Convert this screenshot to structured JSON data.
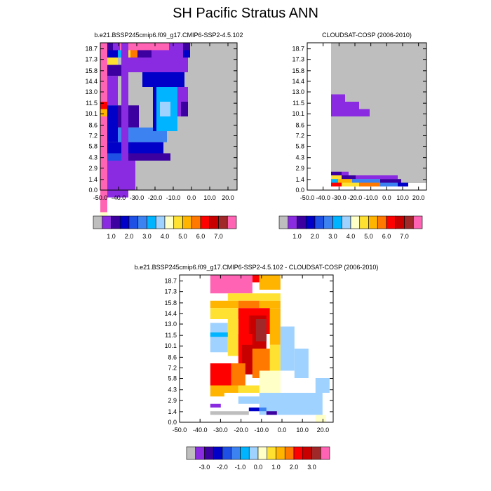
{
  "title": "SH Pacific Stratus ANN",
  "chart_data": [
    {
      "type": "heatmap",
      "title": "b.e21.BSSP245cmip6.f09_g17.CMIP6-SSP2-4.5.102",
      "x_ticks": [
        "-50.0",
        "-40.0",
        "-30.0",
        "-20.0",
        "-10.0",
        "0.0",
        "10.0",
        "20.0"
      ],
      "x_range": [
        -50,
        25
      ],
      "y_ticks": [
        "0.0",
        "1.4",
        "2.9",
        "4.3",
        "5.8",
        "7.2",
        "8.6",
        "10.1",
        "11.5",
        "13.0",
        "14.4",
        "15.8",
        "17.3",
        "18.7"
      ],
      "y_range": [
        0,
        19.5
      ],
      "legend_labels": [
        "1.0",
        "2.0",
        "3.0",
        "4.0",
        "5.0",
        "6.0",
        "7.0"
      ],
      "legend_colors": [
        "#bebebe",
        "#8a2be2",
        "#3c00a0",
        "#0000c8",
        "#1e50e6",
        "#3c82f0",
        "#00b4ff",
        "#a0d2ff",
        "#ffffc8",
        "#ffe132",
        "#ffb400",
        "#ff7800",
        "#ff0000",
        "#c80000",
        "#a02828",
        "#ff64b4"
      ],
      "missing_color": "#bebebe"
    },
    {
      "type": "heatmap",
      "title": "CLOUDSAT-COSP (2006-2010)",
      "x_ticks": [
        "-50.0",
        "-40.0",
        "-30.0",
        "-20.0",
        "-10.0",
        "0.0",
        "10.0",
        "20.0"
      ],
      "x_range": [
        -50,
        25
      ],
      "y_ticks": [
        "0.0",
        "1.4",
        "2.9",
        "4.3",
        "5.8",
        "7.2",
        "8.6",
        "10.1",
        "11.5",
        "13.0",
        "14.4",
        "15.8",
        "17.3",
        "18.7"
      ],
      "y_range": [
        0,
        19.5
      ],
      "legend_labels": [
        "1.0",
        "2.0",
        "3.0",
        "4.0",
        "5.0",
        "6.0",
        "7.0"
      ],
      "legend_colors": [
        "#bebebe",
        "#8a2be2",
        "#3c00a0",
        "#0000c8",
        "#1e50e6",
        "#3c82f0",
        "#00b4ff",
        "#a0d2ff",
        "#ffffc8",
        "#ffe132",
        "#ffb400",
        "#ff7800",
        "#ff0000",
        "#c80000",
        "#a02828",
        "#ff64b4"
      ],
      "missing_color": "#bebebe"
    },
    {
      "type": "heatmap",
      "title": "b.e21.BSSP245cmip6.f09_g17.CMIP6-SSP2-4.5.102 - CLOUDSAT-COSP (2006-2010)",
      "x_ticks": [
        "-50.0",
        "-40.0",
        "-30.0",
        "-20.0",
        "-10.0",
        "0.0",
        "10.0",
        "20.0"
      ],
      "x_range": [
        -50,
        25
      ],
      "y_ticks": [
        "0.0",
        "1.4",
        "2.9",
        "4.3",
        "5.8",
        "7.2",
        "8.6",
        "10.1",
        "11.5",
        "13.0",
        "14.4",
        "15.8",
        "17.3",
        "18.7"
      ],
      "y_range": [
        0,
        19.5
      ],
      "legend_labels": [
        "-3.0",
        "-2.0",
        "-1.0",
        "0.0",
        "1.0",
        "2.0",
        "3.0"
      ],
      "legend_colors": [
        "#bebebe",
        "#8a2be2",
        "#3c00a0",
        "#0000c8",
        "#1e50e6",
        "#3c82f0",
        "#00b4ff",
        "#a0d2ff",
        "#ffffc8",
        "#ffe132",
        "#ffb400",
        "#ff7800",
        "#ff0000",
        "#c80000",
        "#a02828",
        "#ff64b4"
      ],
      "missing_color": "#bebebe"
    }
  ]
}
